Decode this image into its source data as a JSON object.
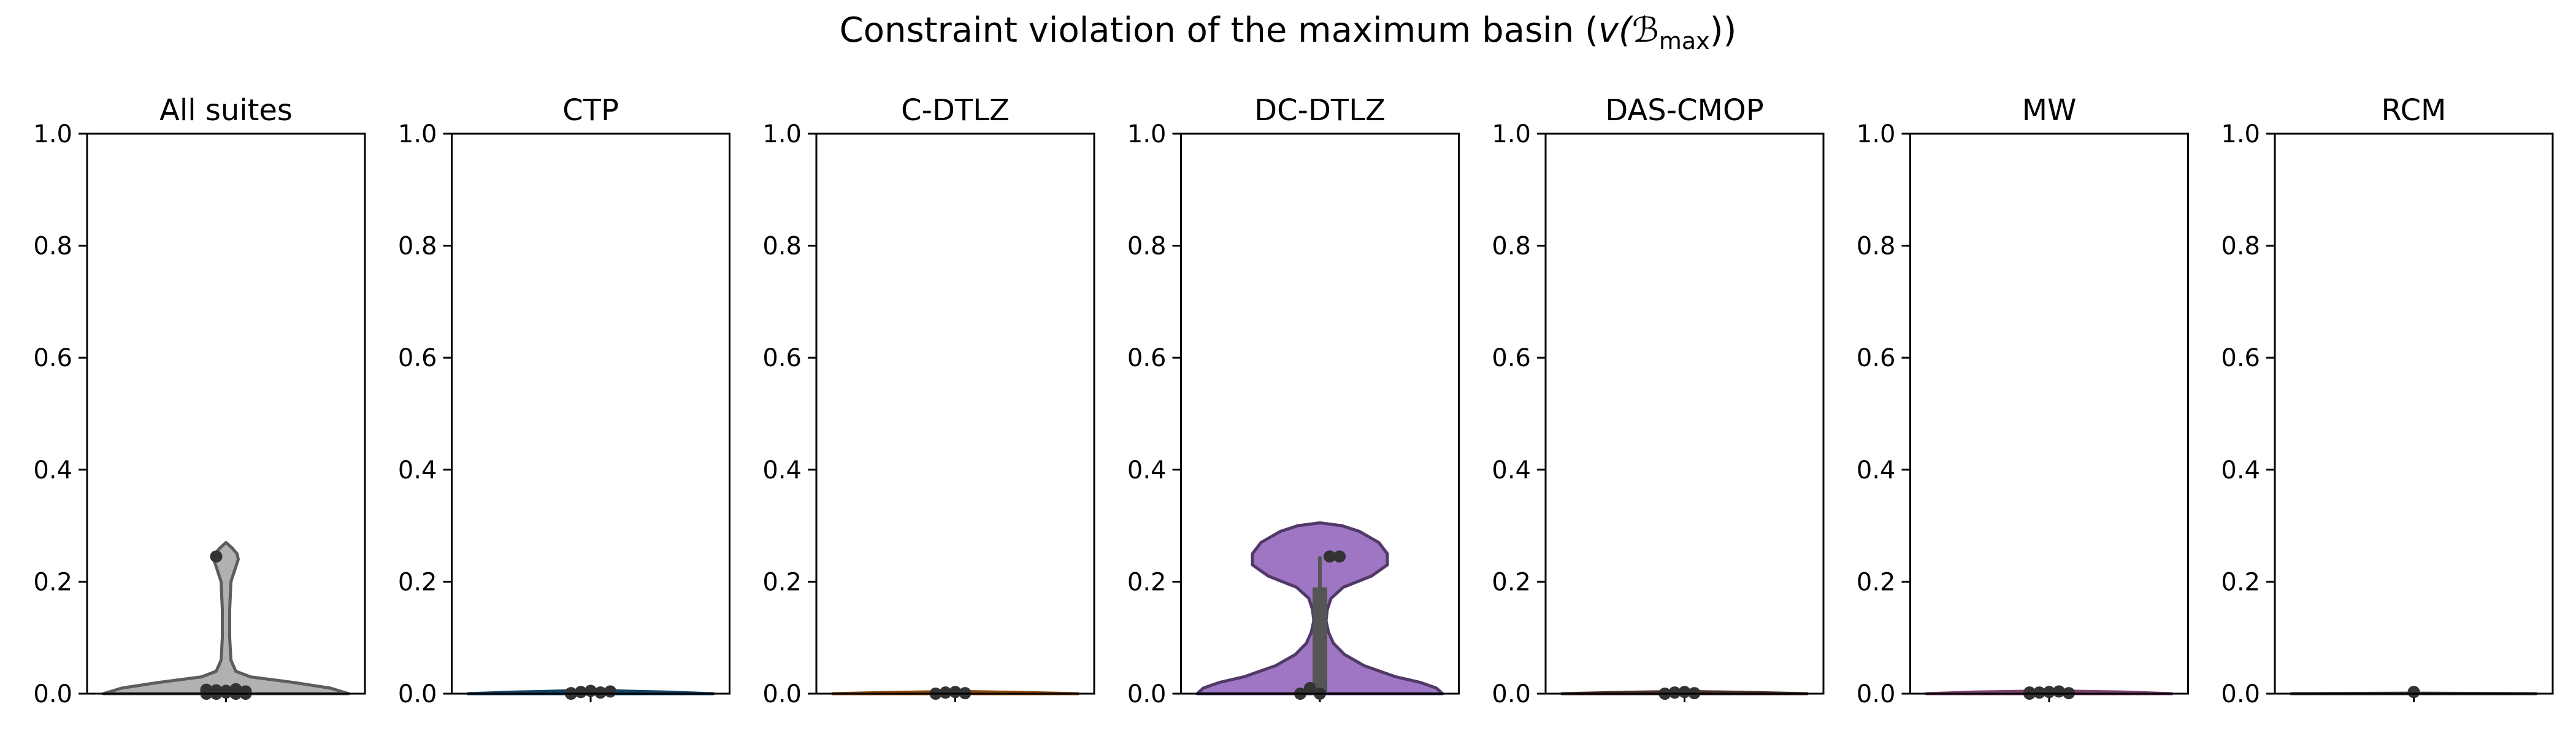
{
  "chart_data": {
    "title_prefix": "Constraint violation of the maximum basin (",
    "title_math": "v(ℬ",
    "title_sub": "max",
    "title_suffix": "))",
    "panels": [
      {
        "type": "violin",
        "title": "All suites",
        "color": "#a9a9a9",
        "ylim": [
          0,
          1.0
        ],
        "yticks": [
          "0.0",
          "0.2",
          "0.4",
          "0.6",
          "0.8",
          "1.0"
        ],
        "points": [
          0.0,
          0.0,
          0.005,
          0.008,
          0.0,
          0.003,
          0.006,
          0.002,
          0.0,
          0.004,
          0.007,
          0.245
        ],
        "box": {
          "q1": 0.0,
          "median": 0.0,
          "q3": 0.004,
          "whisker_low": 0.0,
          "whisker_high": 0.01
        },
        "density": [
          [
            0.0,
            1.0
          ],
          [
            0.01,
            0.85
          ],
          [
            0.02,
            0.55
          ],
          [
            0.03,
            0.2
          ],
          [
            0.04,
            0.08
          ],
          [
            0.06,
            0.04
          ],
          [
            0.1,
            0.03
          ],
          [
            0.15,
            0.03
          ],
          [
            0.2,
            0.04
          ],
          [
            0.22,
            0.07
          ],
          [
            0.24,
            0.1
          ],
          [
            0.25,
            0.09
          ],
          [
            0.26,
            0.05
          ],
          [
            0.27,
            0.0
          ]
        ]
      },
      {
        "type": "violin",
        "title": "CTP",
        "color": "#1f77b4",
        "ylim": [
          0,
          1.0
        ],
        "yticks": [
          "0.0",
          "0.2",
          "0.4",
          "0.6",
          "0.8",
          "1.0"
        ],
        "points": [
          0.0,
          0.003,
          0.005,
          0.002,
          0.004,
          0.001
        ],
        "box": {
          "q1": 0.0,
          "median": 0.002,
          "q3": 0.004,
          "whisker_low": 0.0,
          "whisker_high": 0.005
        },
        "density": [
          [
            0.0,
            1.0
          ],
          [
            0.003,
            0.6
          ],
          [
            0.006,
            0.0
          ]
        ]
      },
      {
        "type": "violin",
        "title": "C-DTLZ",
        "color": "#ff7f0e",
        "ylim": [
          0,
          1.0
        ],
        "yticks": [
          "0.0",
          "0.2",
          "0.4",
          "0.6",
          "0.8",
          "1.0"
        ],
        "points": [
          0.0,
          0.002,
          0.003,
          0.001
        ],
        "box": {
          "q1": 0.0,
          "median": 0.001,
          "q3": 0.002,
          "whisker_low": 0.0,
          "whisker_high": 0.003
        },
        "density": [
          [
            0.0,
            1.0
          ],
          [
            0.002,
            0.6
          ],
          [
            0.004,
            0.0
          ]
        ]
      },
      {
        "type": "violin",
        "title": "DC-DTLZ",
        "color": "#9467bd",
        "ylim": [
          0,
          1.0
        ],
        "yticks": [
          "0.0",
          "0.2",
          "0.4",
          "0.6",
          "0.8",
          "1.0"
        ],
        "points": [
          0.0,
          0.01,
          0.0,
          0.245,
          0.245
        ],
        "box": {
          "q1": 0.0,
          "median": 0.01,
          "q3": 0.19,
          "whisker_low": 0.0,
          "whisker_high": 0.245
        },
        "density": [
          [
            0.0,
            1.0
          ],
          [
            0.01,
            0.95
          ],
          [
            0.02,
            0.82
          ],
          [
            0.03,
            0.62
          ],
          [
            0.05,
            0.36
          ],
          [
            0.07,
            0.2
          ],
          [
            0.09,
            0.11
          ],
          [
            0.11,
            0.07
          ],
          [
            0.13,
            0.05
          ],
          [
            0.15,
            0.06
          ],
          [
            0.17,
            0.09
          ],
          [
            0.19,
            0.19
          ],
          [
            0.21,
            0.42
          ],
          [
            0.23,
            0.55
          ],
          [
            0.25,
            0.55
          ],
          [
            0.27,
            0.48
          ],
          [
            0.29,
            0.32
          ],
          [
            0.3,
            0.18
          ],
          [
            0.305,
            0.0
          ]
        ]
      },
      {
        "type": "violin",
        "title": "DAS-CMOP",
        "color": "#8c564b",
        "ylim": [
          0,
          1.0
        ],
        "yticks": [
          "0.0",
          "0.2",
          "0.4",
          "0.6",
          "0.8",
          "1.0"
        ],
        "points": [
          0.0,
          0.002,
          0.003,
          0.001
        ],
        "box": {
          "q1": 0.0,
          "median": 0.001,
          "q3": 0.002,
          "whisker_low": 0.0,
          "whisker_high": 0.003
        },
        "density": [
          [
            0.0,
            1.0
          ],
          [
            0.002,
            0.6
          ],
          [
            0.004,
            0.0
          ]
        ]
      },
      {
        "type": "violin",
        "title": "MW",
        "color": "#e377c2",
        "ylim": [
          0,
          1.0
        ],
        "yticks": [
          "0.0",
          "0.2",
          "0.4",
          "0.6",
          "0.8",
          "1.0"
        ],
        "points": [
          0.0,
          0.002,
          0.003,
          0.004,
          0.001,
          0.002
        ],
        "box": {
          "q1": 0.0,
          "median": 0.002,
          "q3": 0.003,
          "whisker_low": 0.0,
          "whisker_high": 0.004
        },
        "density": [
          [
            0.0,
            1.0
          ],
          [
            0.003,
            0.6
          ],
          [
            0.005,
            0.0
          ]
        ]
      },
      {
        "type": "violin",
        "title": "RCM",
        "color": "#7f7f7f",
        "ylim": [
          0,
          1.0
        ],
        "yticks": [
          "0.0",
          "0.2",
          "0.4",
          "0.6",
          "0.8",
          "1.0"
        ],
        "points": [
          0.003
        ],
        "box": {
          "q1": 0.0,
          "median": 0.0,
          "q3": 0.0,
          "whisker_low": 0.0,
          "whisker_high": 0.0
        },
        "density": [
          [
            0.0,
            1.0
          ],
          [
            0.001,
            0.0
          ]
        ]
      }
    ]
  }
}
